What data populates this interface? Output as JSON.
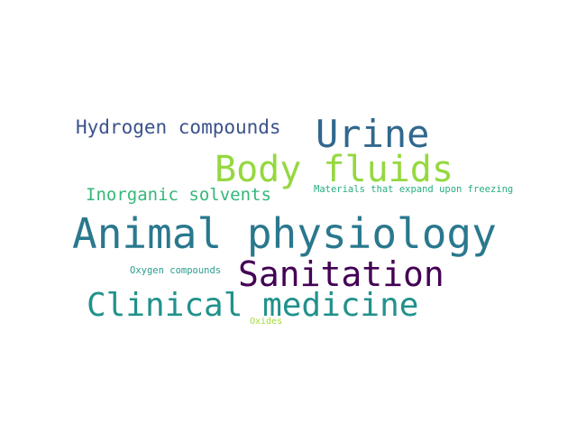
{
  "words": [
    {
      "id": "animal_physiology",
      "text": "Animal physiology",
      "color": "#2a788e"
    },
    {
      "id": "body_fluids",
      "text": "Body fluids",
      "color": "#95d840"
    },
    {
      "id": "urine",
      "text": "Urine",
      "color": "#31688e"
    },
    {
      "id": "sanitation",
      "text": "Sanitation",
      "color": "#440154"
    },
    {
      "id": "clinical_medicine",
      "text": "Clinical medicine",
      "color": "#21918c"
    },
    {
      "id": "hydrogen_compounds",
      "text": "Hydrogen compounds",
      "color": "#3b528b"
    },
    {
      "id": "inorganic_solvents",
      "text": "Inorganic solvents",
      "color": "#35b779"
    },
    {
      "id": "materials_expand",
      "text": "Materials that expand upon freezing",
      "color": "#27ad81"
    },
    {
      "id": "oxygen_compounds",
      "text": "Oxygen compounds",
      "color": "#2a9d8f"
    },
    {
      "id": "oxides",
      "text": "Oxides",
      "color": "#a5db36"
    }
  ]
}
